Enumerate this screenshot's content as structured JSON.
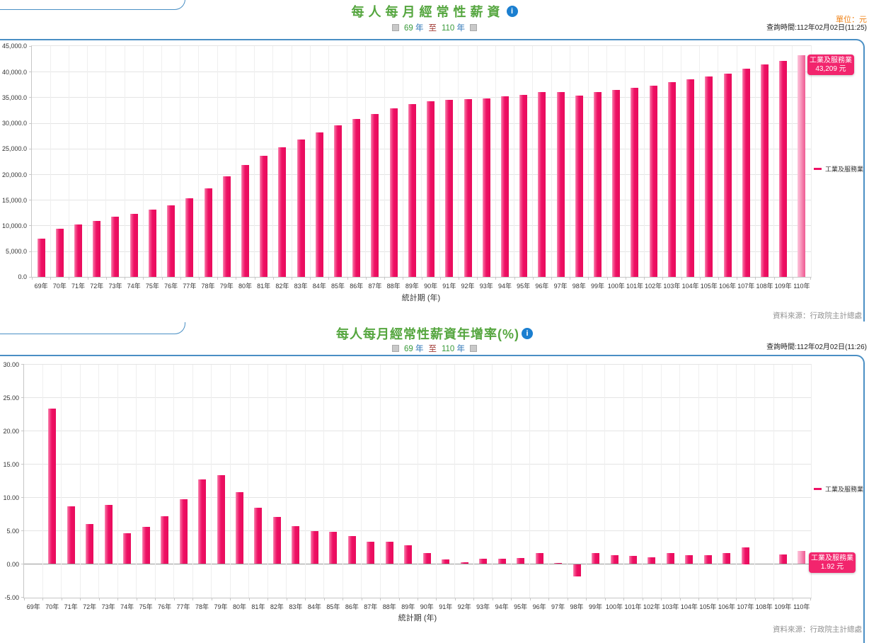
{
  "panels": [
    {
      "title": "每人每月經常性薪資",
      "unit_label": "單位：元",
      "query_time": "查詢時間:112年02月02日(11:25)",
      "range": {
        "from_year": "69",
        "from_suffix": "年",
        "separator": "至",
        "to_year": "110",
        "to_suffix": "年"
      },
      "legend_label": "工業及服務業",
      "tooltip": {
        "series": "工業及服務業",
        "value": "43,209 元"
      },
      "xaxis_title": "統計期 (年)",
      "source": "資料來源：行政院主計總處"
    },
    {
      "title": "每人每月經常性薪資年增率(%)",
      "unit_label": "",
      "query_time": "查詢時間:112年02月02日(11:26)",
      "range": {
        "from_year": "69",
        "from_suffix": "年",
        "separator": "至",
        "to_year": "110",
        "to_suffix": "年"
      },
      "legend_label": "工業及服務業",
      "tooltip": {
        "series": "工業及服務業",
        "value": "1.92 元"
      },
      "xaxis_title": "統計期 (年)",
      "source": "資料來源：行政院主計總處"
    }
  ],
  "chart_data": [
    {
      "type": "bar",
      "title": "每人每月經常性薪資",
      "xlabel": "統計期 (年)",
      "ylabel": "元",
      "ylim": [
        0,
        45000
      ],
      "ytick_step": 5000,
      "ytick_labels": [
        "0.0",
        "5,000.0",
        "10,000.0",
        "15,000.0",
        "20,000.0",
        "25,000.0",
        "30,000.0",
        "35,000.0",
        "40,000.0",
        "45,000.0"
      ],
      "legend": [
        "工業及服務業"
      ],
      "legend_position": "right",
      "grid": true,
      "highlight_category": "110年",
      "categories": [
        "69年",
        "70年",
        "71年",
        "72年",
        "73年",
        "74年",
        "75年",
        "76年",
        "77年",
        "78年",
        "79年",
        "80年",
        "81年",
        "82年",
        "83年",
        "84年",
        "85年",
        "86年",
        "87年",
        "88年",
        "89年",
        "90年",
        "91年",
        "92年",
        "93年",
        "94年",
        "95年",
        "96年",
        "97年",
        "98年",
        "99年",
        "100年",
        "101年",
        "102年",
        "103年",
        "104年",
        "105年",
        "106年",
        "107年",
        "108年",
        "109年",
        "110年"
      ],
      "values": [
        7550,
        9400,
        10300,
        10900,
        11850,
        12400,
        13200,
        13950,
        15350,
        17350,
        19700,
        21800,
        23700,
        25300,
        26850,
        28200,
        29550,
        30850,
        31800,
        32900,
        33700,
        34300,
        34550,
        34650,
        34900,
        35200,
        35550,
        36100,
        36150,
        35450,
        36050,
        36500,
        36950,
        37350,
        38000,
        38550,
        39050,
        39700,
        40650,
        41450,
        42200,
        43209
      ]
    },
    {
      "type": "bar",
      "title": "每人每月經常性薪資年增率(%)",
      "xlabel": "統計期 (年)",
      "ylabel": "%",
      "ylim": [
        -5,
        30
      ],
      "ytick_step": 5,
      "ytick_labels": [
        "-5.00",
        "0.00",
        "5.00",
        "10.00",
        "15.00",
        "20.00",
        "25.00",
        "30.00"
      ],
      "legend": [
        "工業及服務業"
      ],
      "legend_position": "right",
      "grid": true,
      "highlight_category": "110年",
      "categories": [
        "69年",
        "70年",
        "71年",
        "72年",
        "73年",
        "74年",
        "75年",
        "76年",
        "77年",
        "78年",
        "79年",
        "80年",
        "81年",
        "82年",
        "83年",
        "84年",
        "85年",
        "86年",
        "87年",
        "88年",
        "89年",
        "90年",
        "91年",
        "92年",
        "93年",
        "94年",
        "95年",
        "96年",
        "97年",
        "98年",
        "99年",
        "100年",
        "101年",
        "102年",
        "103年",
        "104年",
        "105年",
        "106年",
        "107年",
        "108年",
        "109年",
        "110年"
      ],
      "values": [
        null,
        23.3,
        8.7,
        6.0,
        8.9,
        4.6,
        5.6,
        7.2,
        9.7,
        12.7,
        13.3,
        10.8,
        8.5,
        7.1,
        5.7,
        4.9,
        4.8,
        4.2,
        3.3,
        3.4,
        2.8,
        1.7,
        0.7,
        0.25,
        0.8,
        0.8,
        0.9,
        1.7,
        0.2,
        -1.9,
        1.7,
        1.3,
        1.2,
        1.0,
        1.7,
        1.35,
        1.3,
        1.7,
        2.5,
        null,
        1.45,
        1.92
      ]
    }
  ],
  "colors": {
    "title_green": "#55a63f",
    "border_blue": "#4a8fc4",
    "bar_pink": "#ee1064",
    "bar_highlight": "#f77da8",
    "tooltip_bg": "#f2256d",
    "unit_orange": "#ef8318",
    "year_green": "#3a9a3a",
    "year_suffix_blue": "#2e75b6",
    "separator_red": "#a33e39"
  }
}
